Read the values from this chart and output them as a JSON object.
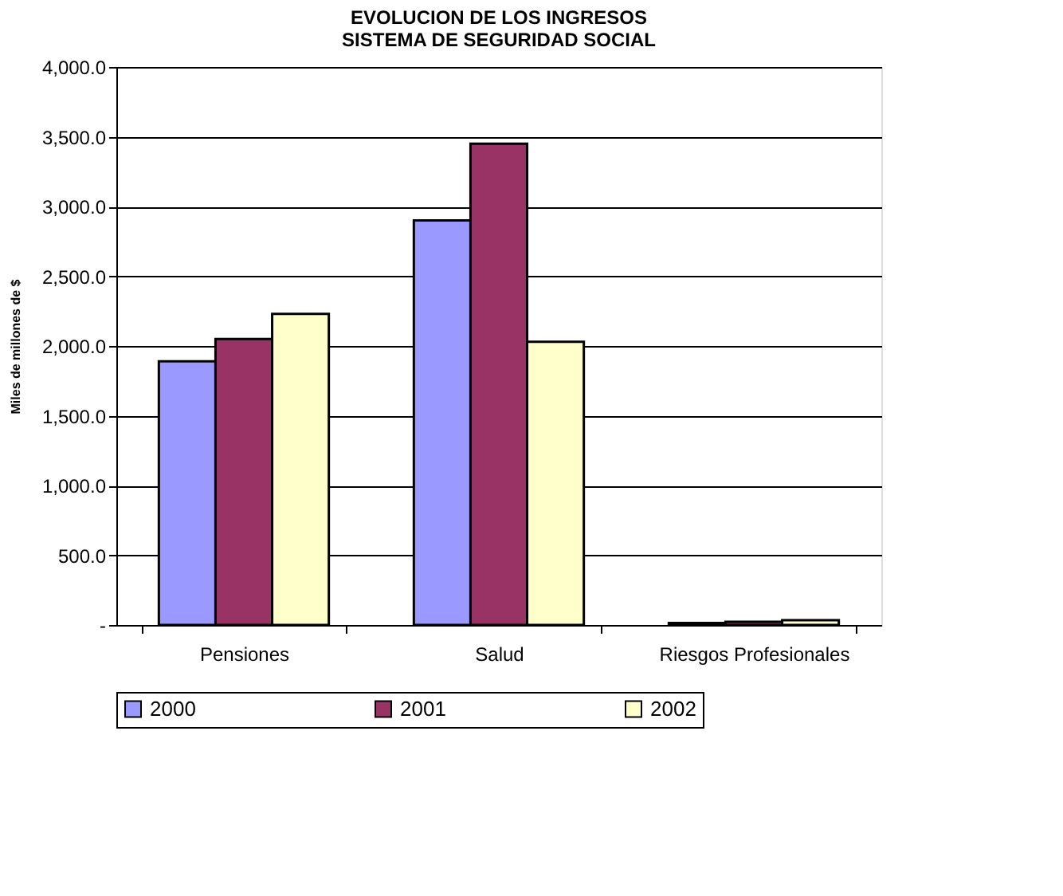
{
  "chart_data": {
    "type": "bar",
    "title": [
      "EVOLUCION DE LOS INGRESOS",
      "SISTEMA DE SEGURIDAD SOCIAL"
    ],
    "ylabel": "Miles de millones de $",
    "categories": [
      "Pensiones",
      "Salud",
      "Riesgos Profesionales"
    ],
    "series": [
      {
        "name": "2000",
        "color": "#9999ff",
        "values": [
          1890,
          2900,
          15
        ]
      },
      {
        "name": "2001",
        "color": "#993366",
        "values": [
          2050,
          3450,
          23
        ]
      },
      {
        "name": "2002",
        "color": "#ffffcc",
        "values": [
          2230,
          2030,
          35
        ]
      }
    ],
    "ylim": [
      0,
      4000
    ],
    "yticks": [
      {
        "value": 0,
        "label": "-"
      },
      {
        "value": 500,
        "label": "500.0"
      },
      {
        "value": 1000,
        "label": "1,000.0"
      },
      {
        "value": 1500,
        "label": "1,500.0"
      },
      {
        "value": 2000,
        "label": "2,000.0"
      },
      {
        "value": 2500,
        "label": "2,500.0"
      },
      {
        "value": 3000,
        "label": "3,000.0"
      },
      {
        "value": 3500,
        "label": "3,500.0"
      },
      {
        "value": 4000,
        "label": "4,000.0"
      }
    ],
    "grid": "y",
    "legend": "bottom"
  }
}
